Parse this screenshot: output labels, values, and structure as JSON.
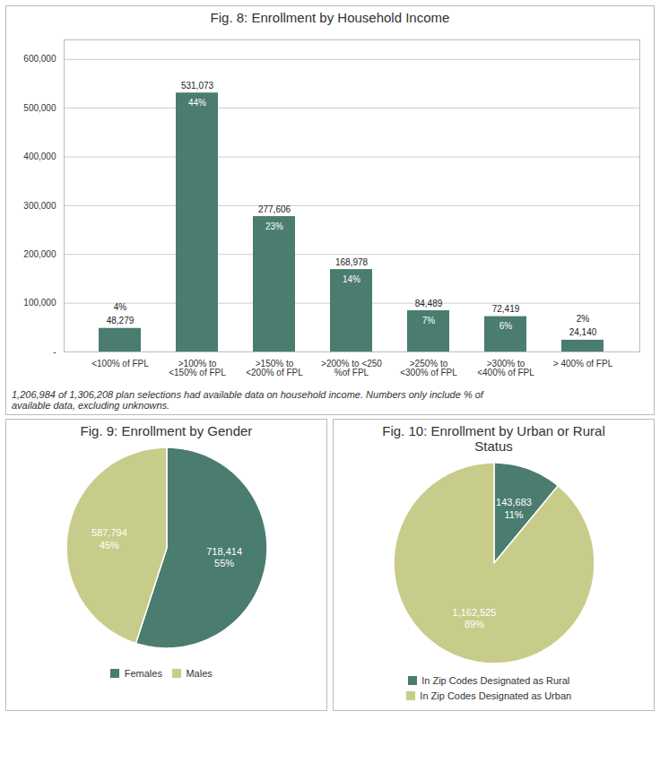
{
  "chart_data": [
    {
      "type": "bar",
      "title": "Fig. 8: Enrollment by Household Income",
      "categories": [
        "<100% of FPL",
        ">100% to\n<150% of FPL",
        ">150% to\n<200% of FPL",
        ">200% to <250\n%of FPL",
        ">250% to\n<300% of FPL",
        ">300% to\n<400% of FPL",
        "> 400% of FPL"
      ],
      "values": [
        48279,
        531073,
        277606,
        168978,
        84489,
        72419,
        24140
      ],
      "value_labels": [
        "48,279",
        "531,073",
        "277,606",
        "168,978",
        "84,489",
        "72,419",
        "24,140"
      ],
      "share_labels": [
        "4%",
        "44%",
        "23%",
        "14%",
        "7%",
        "6%",
        "2%"
      ],
      "color": "#4a7c6f",
      "ylim": [
        0,
        640000
      ],
      "yticks": [
        {
          "value": 0,
          "label": "-"
        },
        {
          "value": 100000,
          "label": "100,000"
        },
        {
          "value": 200000,
          "label": "200,000"
        },
        {
          "value": 300000,
          "label": "300,000"
        },
        {
          "value": 400000,
          "label": "400,000"
        },
        {
          "value": 500000,
          "label": "500,000"
        },
        {
          "value": 600000,
          "label": "600,000"
        }
      ],
      "grid": true,
      "data_labels": true,
      "caption": "1,206,984 of 1,306,208 plan selections had available data on household income. Numbers only include % of\navailable data, excluding unknowns."
    },
    {
      "type": "pie",
      "title": "Fig. 9: Enrollment by Gender",
      "categories": [
        "Females",
        "Males"
      ],
      "values": [
        718414,
        587794
      ],
      "value_labels": [
        "718,414\n55%",
        "587,794\n45%"
      ],
      "colors": [
        "#4a7c6f",
        "#c8cc8a"
      ],
      "data_labels": true,
      "legend": "bottom"
    },
    {
      "type": "pie",
      "title": "Fig. 10: Enrollment by Urban or Rural\nStatus",
      "categories": [
        "In Zip Codes Designated as Rural",
        "In Zip Codes Designated as Urban"
      ],
      "values": [
        143683,
        1162525
      ],
      "value_labels": [
        "143,683\n11%",
        "1,162,525\n89%"
      ],
      "colors": [
        "#4a7c6f",
        "#c8cc8a"
      ],
      "data_labels": true,
      "legend": "bottom"
    }
  ]
}
